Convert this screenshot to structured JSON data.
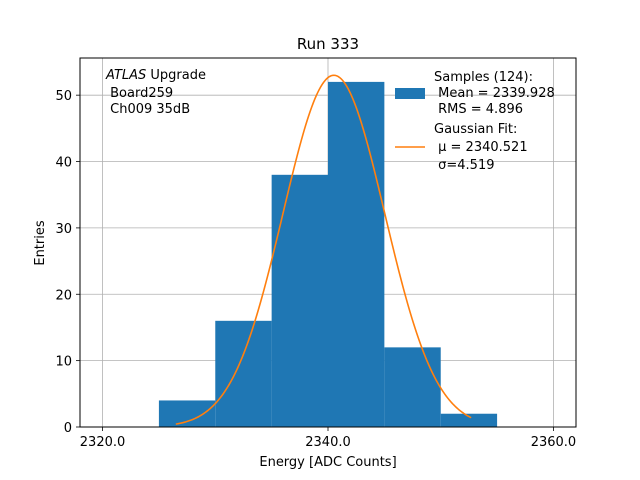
{
  "chart_data": {
    "type": "histogram",
    "title": "Run 333",
    "xlabel": "Energy [ADC Counts]",
    "ylabel": "Entries",
    "xlim": [
      2318.0,
      2362.0
    ],
    "ylim": [
      0,
      55.6
    ],
    "xticks": [
      2320.0,
      2340.0,
      2360.0
    ],
    "xtick_labels": [
      "2320.0",
      "2340.0",
      "2360.0"
    ],
    "yticks": [
      0,
      10,
      20,
      30,
      40,
      50
    ],
    "ytick_labels": [
      "0",
      "10",
      "20",
      "30",
      "40",
      "50"
    ],
    "grid": true,
    "bins": [
      {
        "x0": 2325,
        "x1": 2330,
        "count": 4
      },
      {
        "x0": 2330,
        "x1": 2335,
        "count": 16
      },
      {
        "x0": 2335,
        "x1": 2340,
        "count": 38
      },
      {
        "x0": 2340,
        "x1": 2345,
        "count": 52
      },
      {
        "x0": 2345,
        "x1": 2350,
        "count": 12
      },
      {
        "x0": 2350,
        "x1": 2355,
        "count": 2
      }
    ],
    "bar_color": "#1f77b4",
    "fit": {
      "name": "Gaussian Fit",
      "mu": 2340.521,
      "sigma": 4.519,
      "amplitude": 53.0,
      "x_range": [
        2326.5,
        2352.7
      ],
      "color": "#ff7f0e"
    },
    "annotation": {
      "italic": "ATLAS",
      "normal": " Upgrade",
      "line2": " Board259",
      "line3": " Ch009 35dB"
    },
    "legend": {
      "position": "top-right",
      "samples_lines": [
        "Samples (124):",
        " Mean = 2339.928",
        " RMS = 4.896"
      ],
      "fit_lines": [
        "Gaussian Fit:",
        " μ = 2340.521",
        " σ=4.519"
      ]
    }
  }
}
